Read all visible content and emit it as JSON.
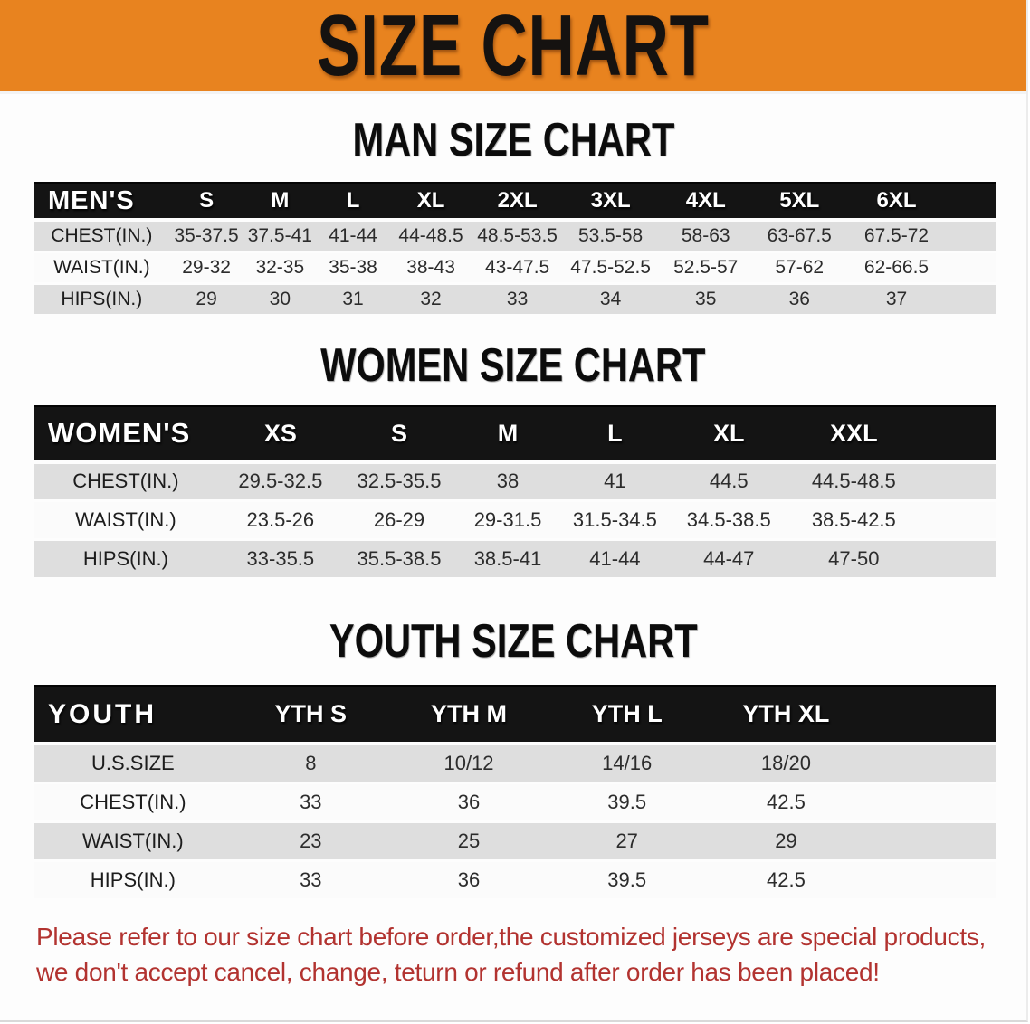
{
  "banner": {
    "title": "SIZE CHART"
  },
  "sections": [
    {
      "title": "MAN SIZE CHART",
      "header_label": "MEN'S",
      "columns": [
        "S",
        "M",
        "L",
        "XL",
        "2XL",
        "3XL",
        "4XL",
        "5XL",
        "6XL"
      ],
      "rows": [
        {
          "label": "CHEST(IN.)",
          "values": [
            "35-37.5",
            "37.5-41",
            "41-44",
            "44-48.5",
            "48.5-53.5",
            "53.5-58",
            "58-63",
            "63-67.5",
            "67.5-72"
          ]
        },
        {
          "label": "WAIST(IN.)",
          "values": [
            "29-32",
            "32-35",
            "35-38",
            "38-43",
            "43-47.5",
            "47.5-52.5",
            "52.5-57",
            "57-62",
            "62-66.5"
          ]
        },
        {
          "label": "HIPS(IN.)",
          "values": [
            "29",
            "30",
            "31",
            "32",
            "33",
            "34",
            "35",
            "36",
            "37"
          ]
        }
      ]
    },
    {
      "title": "WOMEN SIZE CHART",
      "header_label": "WOMEN'S",
      "columns": [
        "XS",
        "S",
        "M",
        "L",
        "XL",
        "XXL"
      ],
      "rows": [
        {
          "label": "CHEST(IN.)",
          "values": [
            "29.5-32.5",
            "32.5-35.5",
            "38",
            "41",
            "44.5",
            "44.5-48.5"
          ]
        },
        {
          "label": "WAIST(IN.)",
          "values": [
            "23.5-26",
            "26-29",
            "29-31.5",
            "31.5-34.5",
            "34.5-38.5",
            "38.5-42.5"
          ]
        },
        {
          "label": "HIPS(IN.)",
          "values": [
            "33-35.5",
            "35.5-38.5",
            "38.5-41",
            "41-44",
            "44-47",
            "47-50"
          ]
        }
      ]
    },
    {
      "title": "YOUTH SIZE CHART",
      "header_label": "YOUTH",
      "columns": [
        "YTH S",
        "YTH M",
        "YTH L",
        "YTH XL"
      ],
      "rows": [
        {
          "label": "U.S.SIZE",
          "values": [
            "8",
            "10/12",
            "14/16",
            "18/20"
          ]
        },
        {
          "label": "CHEST(IN.)",
          "values": [
            "33",
            "36",
            "39.5",
            "42.5"
          ]
        },
        {
          "label": "WAIST(IN.)",
          "values": [
            "23",
            "25",
            "27",
            "29"
          ]
        },
        {
          "label": "HIPS(IN.)",
          "values": [
            "33",
            "36",
            "39.5",
            "42.5"
          ]
        }
      ]
    }
  ],
  "footer_note": {
    "line1": "Please refer to our size chart before order,the customized jerseys are special products,",
    "line2": "we don't accept cancel, change, teturn or refund after order has been placed!"
  },
  "colors": {
    "banner_bg": "#E8831F",
    "header_bar_bg": "#141414",
    "header_bar_text": "#ffffff",
    "row_gray": "#dedede",
    "row_white": "#fbfbfb",
    "note_red": "#B23330",
    "title_black": "#0c0c0c"
  }
}
